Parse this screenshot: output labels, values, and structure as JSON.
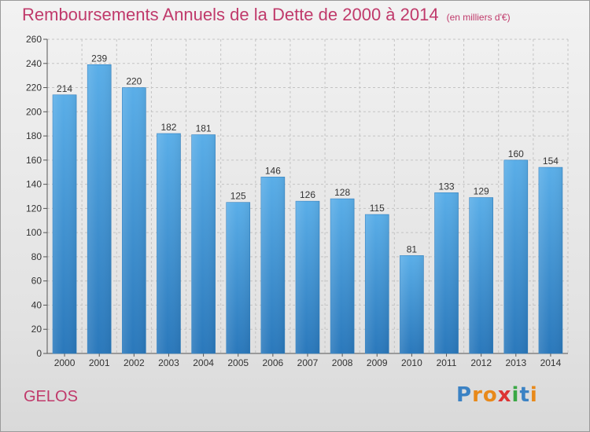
{
  "header": {
    "title": "Remboursements Annuels de la Dette de 2000 à 2014",
    "subtitle": "(en milliers d'€)"
  },
  "footer": {
    "commune": "GELOS",
    "logo_text": "Proxiti",
    "logo_colors": [
      "#3b82c4",
      "#e8891a",
      "#e8891a",
      "#d33",
      "#3aa845",
      "#3b82c4",
      "#e8891a"
    ]
  },
  "colors": {
    "accent": "#c03a6b",
    "bar_top": "#5aaee8",
    "bar_bottom": "#2a78bb"
  },
  "chart_data": {
    "type": "bar",
    "title": "Remboursements Annuels de la Dette de 2000 à 2014",
    "subtitle": "(en milliers d'€)",
    "xlabel": "",
    "ylabel": "",
    "categories": [
      "2000",
      "2001",
      "2002",
      "2003",
      "2004",
      "2005",
      "2006",
      "2007",
      "2008",
      "2009",
      "2010",
      "2011",
      "2012",
      "2013",
      "2014"
    ],
    "values": [
      214,
      239,
      220,
      182,
      181,
      125,
      146,
      126,
      128,
      115,
      81,
      133,
      129,
      160,
      154
    ],
    "ylim": [
      0,
      260
    ],
    "yticks": [
      0,
      20,
      40,
      60,
      80,
      100,
      120,
      140,
      160,
      180,
      200,
      220,
      240,
      260
    ],
    "grid": true,
    "data_labels": true
  }
}
